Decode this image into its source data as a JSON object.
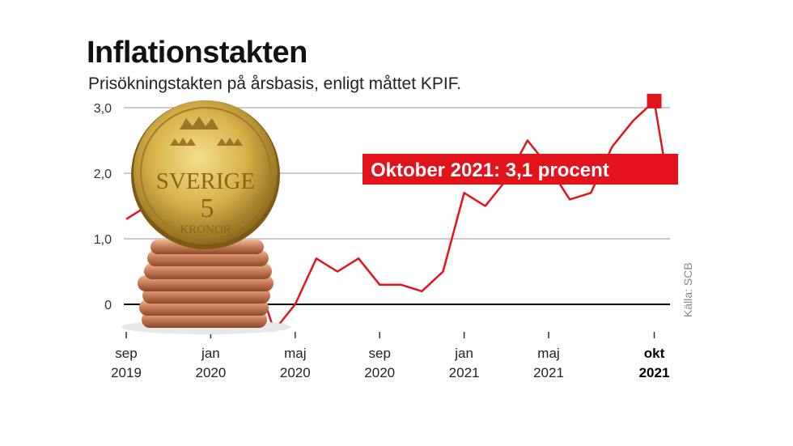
{
  "title": "Inflationstakten",
  "subtitle": "Prisökningstakten på årsbasis, enligt måttet KPIF.",
  "source": "Källa: SCB",
  "coin": {
    "country": "SVERIGE",
    "denomination": "5",
    "unit": "KRONOR"
  },
  "colors": {
    "line": "#e3131b",
    "zero_line": "#000000",
    "grid": "#9a9a9a"
  },
  "chart_data": {
    "type": "line",
    "title": "Inflationstakten",
    "subtitle": "Prisökningstakten på årsbasis, enligt måttet KPIF.",
    "xlabel": "",
    "ylabel": "",
    "ylim": [
      -0.4,
      3.1
    ],
    "yticks": [
      {
        "value": 0,
        "label": "0"
      },
      {
        "value": 1.0,
        "label": "1,0"
      },
      {
        "value": 2.0,
        "label": "2,0"
      },
      {
        "value": 3.0,
        "label": "3,0"
      }
    ],
    "xticks": [
      {
        "month": "sep",
        "year": "2019",
        "index": 0,
        "bold": false
      },
      {
        "month": "jan",
        "year": "2020",
        "index": 4,
        "bold": false
      },
      {
        "month": "maj",
        "year": "2020",
        "index": 8,
        "bold": false
      },
      {
        "month": "sep",
        "year": "2020",
        "index": 12,
        "bold": false
      },
      {
        "month": "jan",
        "year": "2021",
        "index": 16,
        "bold": false
      },
      {
        "month": "maj",
        "year": "2021",
        "index": 20,
        "bold": false
      },
      {
        "month": "okt",
        "year": "2021",
        "index": 25,
        "bold": true
      }
    ],
    "grid": true,
    "series": [
      {
        "x": [
          "2019-09",
          "2019-10",
          "2019-11",
          "2019-12",
          "2020-01",
          "2020-02",
          "2020-03",
          "2020-04",
          "2020-05",
          "2020-06",
          "2020-07",
          "2020-08",
          "2020-09",
          "2020-10",
          "2020-11",
          "2020-12",
          "2021-01",
          "2021-02",
          "2021-03",
          "2021-04",
          "2021-05",
          "2021-06",
          "2021-07",
          "2021-08",
          "2021-09",
          "2021-10"
        ],
        "values": [
          1.3,
          1.5,
          1.7,
          1.7,
          1.3,
          1.3,
          0.6,
          -0.4,
          0.0,
          0.7,
          0.5,
          0.7,
          0.3,
          0.3,
          0.2,
          0.5,
          1.7,
          1.5,
          1.9,
          2.5,
          2.1,
          1.6,
          1.7,
          2.4,
          2.8,
          3.1
        ]
      }
    ],
    "annotation": {
      "text": "Oktober 2021: 3,1 procent",
      "index": 25
    }
  }
}
